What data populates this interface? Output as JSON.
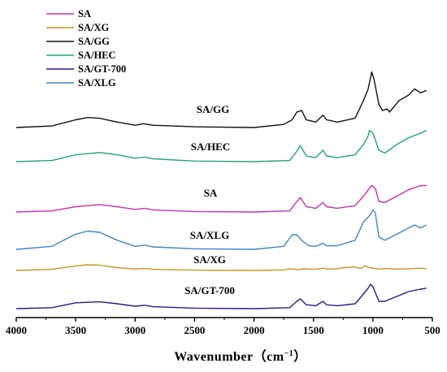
{
  "chart_data": {
    "type": "line",
    "title": "",
    "xlabel": "Wavenumber",
    "xlabel_unit": "（cm",
    "xlabel_unit_sup": "−1",
    "xlabel_unit_close": "）",
    "ylabel": "",
    "xlim": [
      4000,
      500
    ],
    "x_reversed": true,
    "x_ticks": [
      "4000",
      "3500",
      "3000",
      "2500",
      "2000",
      "1500",
      "1000",
      "500"
    ],
    "grid": false,
    "legend_placement": "top-left",
    "legend": [
      {
        "name": "SA",
        "color": "#c72fb0"
      },
      {
        "name": "SA/XG",
        "color": "#c8961e"
      },
      {
        "name": "SA/GG",
        "color": "#111111"
      },
      {
        "name": "SA/HEC",
        "color": "#22a869"
      },
      {
        "name": "SA/GT-700",
        "color": "#1f1f8c"
      },
      {
        "name": "SA/XLG",
        "color": "#3f86c4"
      }
    ],
    "series": [
      {
        "name": "SA/GG",
        "color": "#111111",
        "offset": 0.0,
        "points": [
          [
            4000,
            0.0
          ],
          [
            3700,
            0.02
          ],
          [
            3500,
            0.1
          ],
          [
            3400,
            0.13
          ],
          [
            3300,
            0.12
          ],
          [
            3150,
            0.07
          ],
          [
            3000,
            0.03
          ],
          [
            2930,
            0.05
          ],
          [
            2850,
            0.03
          ],
          [
            2500,
            0.01
          ],
          [
            2000,
            0.0
          ],
          [
            1750,
            0.04
          ],
          [
            1680,
            0.1
          ],
          [
            1640,
            0.2
          ],
          [
            1600,
            0.22
          ],
          [
            1560,
            0.1
          ],
          [
            1480,
            0.07
          ],
          [
            1420,
            0.16
          ],
          [
            1390,
            0.1
          ],
          [
            1300,
            0.07
          ],
          [
            1150,
            0.12
          ],
          [
            1080,
            0.35
          ],
          [
            1040,
            0.5
          ],
          [
            1010,
            0.72
          ],
          [
            990,
            0.62
          ],
          [
            950,
            0.3
          ],
          [
            920,
            0.22
          ],
          [
            880,
            0.24
          ],
          [
            860,
            0.2
          ],
          [
            780,
            0.35
          ],
          [
            700,
            0.42
          ],
          [
            650,
            0.5
          ],
          [
            600,
            0.45
          ],
          [
            550,
            0.48
          ]
        ]
      },
      {
        "name": "SA/HEC",
        "color": "#22a869",
        "offset": 0.0,
        "points": [
          [
            4000,
            0.0
          ],
          [
            3700,
            0.02
          ],
          [
            3500,
            0.12
          ],
          [
            3300,
            0.16
          ],
          [
            3150,
            0.12
          ],
          [
            3000,
            0.06
          ],
          [
            2920,
            0.08
          ],
          [
            2850,
            0.05
          ],
          [
            2500,
            0.01
          ],
          [
            2000,
            0.0
          ],
          [
            1700,
            0.02
          ],
          [
            1640,
            0.18
          ],
          [
            1610,
            0.28
          ],
          [
            1560,
            0.1
          ],
          [
            1480,
            0.07
          ],
          [
            1420,
            0.2
          ],
          [
            1390,
            0.1
          ],
          [
            1300,
            0.07
          ],
          [
            1150,
            0.12
          ],
          [
            1080,
            0.3
          ],
          [
            1040,
            0.45
          ],
          [
            1030,
            0.55
          ],
          [
            1000,
            0.5
          ],
          [
            950,
            0.2
          ],
          [
            900,
            0.15
          ],
          [
            800,
            0.3
          ],
          [
            700,
            0.42
          ],
          [
            600,
            0.5
          ],
          [
            550,
            0.55
          ]
        ]
      },
      {
        "name": "SA",
        "color": "#c72fb0",
        "offset": 0.0,
        "points": [
          [
            4000,
            0.0
          ],
          [
            3700,
            0.02
          ],
          [
            3500,
            0.1
          ],
          [
            3300,
            0.14
          ],
          [
            3150,
            0.1
          ],
          [
            3000,
            0.05
          ],
          [
            2920,
            0.07
          ],
          [
            2850,
            0.04
          ],
          [
            2500,
            0.01
          ],
          [
            2000,
            0.0
          ],
          [
            1700,
            0.02
          ],
          [
            1640,
            0.2
          ],
          [
            1610,
            0.27
          ],
          [
            1560,
            0.1
          ],
          [
            1480,
            0.07
          ],
          [
            1420,
            0.18
          ],
          [
            1390,
            0.1
          ],
          [
            1300,
            0.07
          ],
          [
            1150,
            0.12
          ],
          [
            1080,
            0.3
          ],
          [
            1030,
            0.45
          ],
          [
            1010,
            0.5
          ],
          [
            980,
            0.45
          ],
          [
            950,
            0.2
          ],
          [
            900,
            0.18
          ],
          [
            800,
            0.3
          ],
          [
            700,
            0.42
          ],
          [
            600,
            0.5
          ],
          [
            550,
            0.5
          ]
        ]
      },
      {
        "name": "SA/XLG",
        "color": "#3f86c4",
        "offset": 0.0,
        "points": [
          [
            4000,
            0.0
          ],
          [
            3700,
            0.05
          ],
          [
            3500,
            0.25
          ],
          [
            3400,
            0.3
          ],
          [
            3300,
            0.28
          ],
          [
            3150,
            0.15
          ],
          [
            3000,
            0.05
          ],
          [
            2920,
            0.07
          ],
          [
            2850,
            0.04
          ],
          [
            2500,
            0.01
          ],
          [
            2000,
            0.0
          ],
          [
            1750,
            0.05
          ],
          [
            1680,
            0.24
          ],
          [
            1640,
            0.24
          ],
          [
            1600,
            0.15
          ],
          [
            1540,
            0.06
          ],
          [
            1480,
            0.05
          ],
          [
            1420,
            0.1
          ],
          [
            1390,
            0.06
          ],
          [
            1300,
            0.06
          ],
          [
            1150,
            0.15
          ],
          [
            1080,
            0.45
          ],
          [
            1030,
            0.55
          ],
          [
            1000,
            0.65
          ],
          [
            980,
            0.6
          ],
          [
            950,
            0.2
          ],
          [
            900,
            0.15
          ],
          [
            800,
            0.25
          ],
          [
            700,
            0.35
          ],
          [
            650,
            0.4
          ],
          [
            600,
            0.35
          ],
          [
            550,
            0.4
          ]
        ]
      },
      {
        "name": "SA/XG",
        "color": "#c8961e",
        "offset": 0.0,
        "points": [
          [
            4000,
            0.0
          ],
          [
            3700,
            0.04
          ],
          [
            3500,
            0.16
          ],
          [
            3400,
            0.2
          ],
          [
            3300,
            0.19
          ],
          [
            3150,
            0.1
          ],
          [
            3000,
            0.05
          ],
          [
            2920,
            0.07
          ],
          [
            2850,
            0.04
          ],
          [
            2500,
            0.01
          ],
          [
            2000,
            0.0
          ],
          [
            1750,
            0.02
          ],
          [
            1700,
            0.06
          ],
          [
            1620,
            0.03
          ],
          [
            1580,
            0.06
          ],
          [
            1500,
            0.04
          ],
          [
            1420,
            0.08
          ],
          [
            1390,
            0.05
          ],
          [
            1300,
            0.06
          ],
          [
            1250,
            0.1
          ],
          [
            1150,
            0.12
          ],
          [
            1100,
            0.07
          ],
          [
            1070,
            0.16
          ],
          [
            1050,
            0.14
          ],
          [
            1030,
            0.1
          ],
          [
            950,
            0.05
          ],
          [
            900,
            0.07
          ],
          [
            800,
            0.05
          ],
          [
            700,
            0.06
          ],
          [
            600,
            0.08
          ],
          [
            550,
            0.06
          ]
        ]
      },
      {
        "name": "SA/GT-700",
        "color": "#1f1f8c",
        "offset": 0.0,
        "points": [
          [
            4000,
            0.0
          ],
          [
            3700,
            0.02
          ],
          [
            3500,
            0.12
          ],
          [
            3300,
            0.14
          ],
          [
            3150,
            0.1
          ],
          [
            3000,
            0.05
          ],
          [
            2920,
            0.07
          ],
          [
            2850,
            0.04
          ],
          [
            2500,
            0.01
          ],
          [
            2000,
            0.0
          ],
          [
            1700,
            0.02
          ],
          [
            1640,
            0.15
          ],
          [
            1610,
            0.2
          ],
          [
            1560,
            0.08
          ],
          [
            1480,
            0.06
          ],
          [
            1420,
            0.15
          ],
          [
            1390,
            0.08
          ],
          [
            1300,
            0.06
          ],
          [
            1150,
            0.1
          ],
          [
            1080,
            0.3
          ],
          [
            1040,
            0.42
          ],
          [
            1020,
            0.5
          ],
          [
            1000,
            0.45
          ],
          [
            950,
            0.15
          ],
          [
            900,
            0.15
          ],
          [
            800,
            0.25
          ],
          [
            700,
            0.35
          ],
          [
            600,
            0.4
          ],
          [
            550,
            0.42
          ]
        ]
      }
    ],
    "series_labels": [
      {
        "text": "SA/GG"
      },
      {
        "text": "SA/HEC"
      },
      {
        "text": "SA"
      },
      {
        "text": "SA/XLG"
      },
      {
        "text": "SA/XG"
      },
      {
        "text": "SA/GT-700"
      }
    ]
  }
}
